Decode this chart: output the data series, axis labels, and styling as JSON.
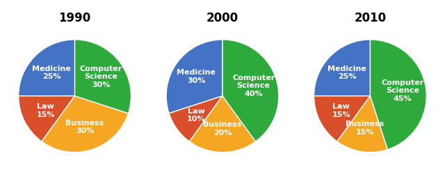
{
  "years": [
    "1990",
    "2000",
    "2010"
  ],
  "values": [
    [
      25,
      15,
      30,
      30
    ],
    [
      30,
      10,
      20,
      40
    ],
    [
      25,
      15,
      15,
      45
    ]
  ],
  "colors": [
    "#4472c4",
    "#d94f2b",
    "#f5a623",
    "#2eaa3c"
  ],
  "labels": [
    [
      "Medicine\n25%",
      "Law\n15%",
      "Business\n30%",
      "Computer\nScience\n30%"
    ],
    [
      "Medicine\n30%",
      "Law\n10%",
      "Business\n20%",
      "Computer\nScience\n40%"
    ],
    [
      "Medicine\n25%",
      "Law\n15%",
      "Business\n15%",
      "Computer\nScience\n45%"
    ]
  ],
  "startangle": 90,
  "title_fontsize": 12,
  "label_fontsize": 8,
  "background_color": "#ffffff",
  "labeldistance": 0.58
}
